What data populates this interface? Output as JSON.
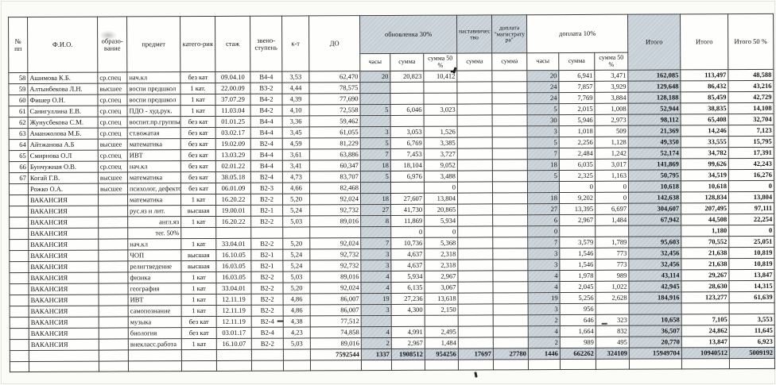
{
  "table": {
    "header": {
      "num": "№\nпп",
      "fio": "Ф.И.О.",
      "education": "образо-\nвание",
      "subject": "предмет",
      "category": "катего-рия",
      "experience": "стаж",
      "grade": "звено-\nступень",
      "coefficient": "к-т",
      "do": "ДО",
      "obnovlenka": "обновленка 30%",
      "nastavnichestvo": "наставничес\nтво",
      "magistratura": "доплата\n\"магистрату\nра\"",
      "doplata10": "доплата 10%",
      "hours": "часы",
      "summa": "сумма",
      "summa50": "сумма 50 %",
      "itogo1": "Итого",
      "itogo2": "Итого",
      "itogo50": "Итого 50 %"
    },
    "rows": [
      [
        "58",
        "Ашимова К.Б.",
        "ср.спец",
        "нач.кл",
        "без кат",
        "09.04.10",
        "В4-4",
        "3,53",
        "62,470",
        "20",
        "20,823",
        "10,412",
        "",
        "",
        "20",
        "6,941",
        "3,471",
        "162,085",
        "113,497",
        "48,588"
      ],
      [
        "59",
        "Алтынбекова Л.Н.",
        "высшее",
        "воспи предшкол",
        "1 кат.",
        "22.00.09",
        "В3-2",
        "4,44",
        "78,575",
        "",
        "",
        "",
        "",
        "",
        "24",
        "7,857",
        "3,929",
        "129,648",
        "86,432",
        "43,216"
      ],
      [
        "60",
        "Фишер О.Н.",
        "ср.спец",
        "воспи предшкол",
        "1 кат",
        "37.07.29",
        "В4-2",
        "4,39",
        "77,690",
        "",
        "",
        "",
        "",
        "",
        "24",
        "7,769",
        "3,884",
        "128,188",
        "85,459",
        "42,729"
      ],
      [
        "61",
        "Санигуллина Е.В.",
        "ср.спец",
        "ПДО - худ.рук.",
        "1 кат",
        "11.03.04",
        "В4-2",
        "4,10",
        "72,558",
        "5",
        "6,046",
        "3,023",
        "",
        "",
        "5",
        "2,015",
        "1,008",
        "52,944",
        "38,835",
        "14,108"
      ],
      [
        "62",
        "Жунусбекова С.М.",
        "ср.спец",
        "воспит.пр.группы",
        "без кат",
        "01.01.25",
        "В4-4",
        "3,36",
        "59,462",
        "",
        "",
        "",
        "",
        "",
        "30",
        "5,946",
        "2,973",
        "98,112",
        "65,408",
        "32,704"
      ],
      [
        "63",
        "Аманжолова М.Б.",
        "ср.спец",
        "ст.вожатая",
        "без кат",
        "03.02.17",
        "В4-4",
        "3,45",
        "61,055",
        "3",
        "3,053",
        "1,526",
        "",
        "",
        "3",
        "1,018",
        "509",
        "21,369",
        "14,246",
        "7,123"
      ],
      [
        "64",
        "Айтжанова А.Б",
        "высшее",
        "математика",
        "без кат",
        "19.02.09",
        "В2-4",
        "4,59",
        "81,229",
        "5",
        "6,769",
        "3,385",
        "",
        "",
        "5",
        "2,256",
        "1,128",
        "49,350",
        "33,555",
        "15,795"
      ],
      [
        "65",
        "Смирнова О.Л",
        "ср.спец",
        "ИВТ",
        "без кат",
        "13.03.29",
        "В4-4",
        "3,61",
        "63,886",
        "7",
        "7,453",
        "3,727",
        "",
        "",
        "7",
        "2,484",
        "1,242",
        "52,174",
        "34,782",
        "17,391"
      ],
      [
        "66",
        "Бунчужная О.В.",
        "ср.спец",
        "нач.кл",
        "без кат",
        "02.01.22",
        "В4-4",
        "3,41",
        "60,347",
        "18",
        "18,104",
        "9,052",
        "",
        "",
        "18",
        "6,035",
        "3,017",
        "141,869",
        "99,626",
        "42,243"
      ],
      [
        "67",
        "Когай Г.В.",
        "высшее",
        "математика",
        "без кат",
        "38.05.18",
        "В2-4",
        "4,73",
        "83,707",
        "5",
        "6,976",
        "3,488",
        "",
        "",
        "5",
        "2,325",
        "1,163",
        "50,795",
        "34,519",
        "16,276"
      ],
      [
        "",
        "Рожко О.А.",
        "высшее",
        "психолог, дефектол",
        "без кат",
        "06.01.09",
        "В2-3",
        "4,66",
        "82,468",
        "",
        "",
        "0",
        "",
        "",
        "",
        "0",
        "0",
        "10,618",
        "10,618",
        "0"
      ],
      [
        "",
        "ВАКАНСИЯ",
        "",
        "математика",
        "1 кат",
        "16.20.22",
        "В2-2",
        "5,20",
        "92,024",
        "18",
        "27,607",
        "13,804",
        "",
        "",
        "18",
        "9,202",
        "0",
        "142,638",
        "128,834",
        "13,804"
      ],
      [
        "",
        "ВАКАНСИЯ",
        "",
        "рус.яз и лит.",
        "высшая",
        "19.00.01",
        "В2-1",
        "5,24",
        "92,732",
        "27",
        "41,730",
        "20,865",
        "",
        "",
        "27",
        "13,395",
        "6,697",
        "304,607",
        "207,495",
        "97,111"
      ],
      [
        "",
        "ВАКАНСИЯ",
        "",
        "англ.яз",
        "1 кат",
        "16.20.22",
        "В2-2",
        "5,03",
        "89,016",
        "8",
        "11,869",
        "5,934",
        "",
        "",
        "6",
        "2,967",
        "1,484",
        "67,942",
        "44,508",
        "22,254"
      ],
      [
        "",
        "ВАКАНСИЯ",
        "",
        "тег. 50%",
        "",
        "",
        "",
        "",
        "",
        "",
        "0",
        "0",
        "",
        "",
        "0",
        "",
        "",
        "",
        "1,180",
        "0"
      ],
      [
        "",
        "ВАКАНСИЯ",
        "",
        "нач.кл",
        "1 кат",
        "33.04.01",
        "В2-2",
        "5,20",
        "92,024",
        "7",
        "10,736",
        "5,368",
        "",
        "",
        "7",
        "3,579",
        "1,789",
        "95,603",
        "70,552",
        "25,051"
      ],
      [
        "",
        "ВАКАНСИЯ",
        "",
        "ЧОП",
        "высшая",
        "16.10.05",
        "В2-1",
        "5,24",
        "92,732",
        "3",
        "4,637",
        "2,318",
        "",
        "",
        "3",
        "1,546",
        "773",
        "32,456",
        "21,638",
        "10,819"
      ],
      [
        "",
        "ВАКАНСИЯ",
        "",
        "религтведение",
        "высшая",
        "16.03.05",
        "В2-1",
        "5,24",
        "92,732",
        "3",
        "4,637",
        "2,318",
        "",
        "",
        "3",
        "1,546",
        "773",
        "32,456",
        "21,638",
        "10,819"
      ],
      [
        "",
        "ВАКАНСИЯ",
        "",
        "физика",
        "1 кат",
        "16.03.05",
        "В2-2",
        "5,03",
        "89,016",
        "4",
        "5,934",
        "2,967",
        "",
        "",
        "4",
        "1,978",
        "989",
        "43,114",
        "29,267",
        "13,847"
      ],
      [
        "",
        "ВАКАНСИЯ",
        "",
        "география",
        "1 кат",
        "33.04.01",
        "В2-2",
        "5,20",
        "92,024",
        "4",
        "6,135",
        "3,067",
        "",
        "",
        "4",
        "2,045",
        "1,022",
        "42,945",
        "28,630",
        "14,315"
      ],
      [
        "",
        "ВАКАНСИЯ",
        "",
        "ИВТ",
        "1 кат",
        "12.11.19",
        "В2-2",
        "4,86",
        "86,007",
        "19",
        "27,236",
        "13,618",
        "",
        "",
        "19",
        "5,256",
        "2,628",
        "184,916",
        "123,277",
        "61,639"
      ],
      [
        "",
        "ВАКАНСИЯ",
        "",
        "самопознание",
        "1 кат",
        "12.11.19",
        "В2-2",
        "4,86",
        "86,007",
        "3",
        "4,300",
        "2,150",
        "",
        "",
        "3",
        "956",
        "",
        "",
        "",
        ""
      ],
      [
        "",
        "ВАКАНСИЯ",
        "",
        "музыка",
        "без кат",
        "12.11.19",
        "В2-4",
        "4,38",
        "77,512",
        "",
        "",
        "",
        "",
        "",
        "2",
        "646",
        "323",
        "10,658",
        "7,105",
        "3,553"
      ],
      [
        "",
        "ВАКАНСИЯ",
        "",
        "биология",
        "без кат",
        "03.01.17",
        "В2-4",
        "4,23",
        "74,858",
        "4",
        "4,991",
        "2,495",
        "",
        "",
        "4",
        "1,664",
        "832",
        "36,507",
        "24,862",
        "11,645"
      ],
      [
        "",
        "ВАКАНСИЯ",
        "",
        "внекласс.работа",
        "1 кат",
        "16.10.07",
        "В2-2",
        "5,03",
        "89,016",
        "2",
        "2,967",
        "1,484",
        "",
        "",
        "2",
        "989",
        "495",
        "20,770",
        "13,847",
        "6,923"
      ]
    ],
    "totals": [
      "",
      "",
      "",
      "",
      "",
      "",
      "",
      "7592544",
      "1337",
      "1908512",
      "954256",
      "17697",
      "27780",
      "1446",
      "662262",
      "324109",
      "15949704",
      "10940512",
      "5009192"
    ]
  },
  "colors": {
    "shaded_fill": "#c6cfd6",
    "border": "#3a3a3a",
    "paper": "#fefefc"
  }
}
